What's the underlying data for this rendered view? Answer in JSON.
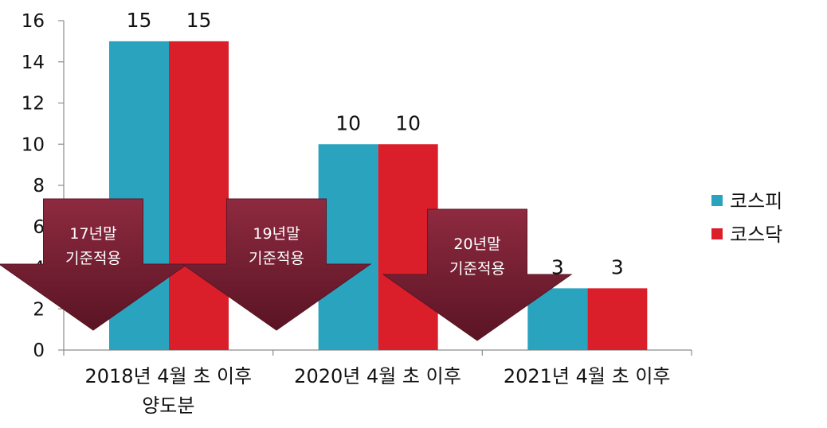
{
  "chart_data": {
    "type": "bar",
    "categories": [
      [
        "2018년 4월 초 이후",
        "양도분"
      ],
      [
        "2020년 4월 초 이후"
      ],
      [
        "2021년 4월 초 이후"
      ]
    ],
    "series": [
      {
        "name": "코스피",
        "values": [
          15,
          10,
          3
        ],
        "color": "#2aa3be"
      },
      {
        "name": "코스닥",
        "values": [
          15,
          10,
          3
        ],
        "color": "#db1f2a"
      }
    ],
    "yticks": [
      "0",
      "2",
      "4",
      "6",
      "8",
      "10",
      "12",
      "14",
      "16"
    ],
    "ylim": [
      0,
      16
    ],
    "grid": false,
    "legend_position": "right",
    "annotations": [
      {
        "lines": [
          "17년말",
          "기준적용"
        ]
      },
      {
        "lines": [
          "19년말",
          "기준적용"
        ]
      },
      {
        "lines": [
          "20년말",
          "기준적용"
        ]
      }
    ],
    "annotation_color": "#7d1e33"
  }
}
